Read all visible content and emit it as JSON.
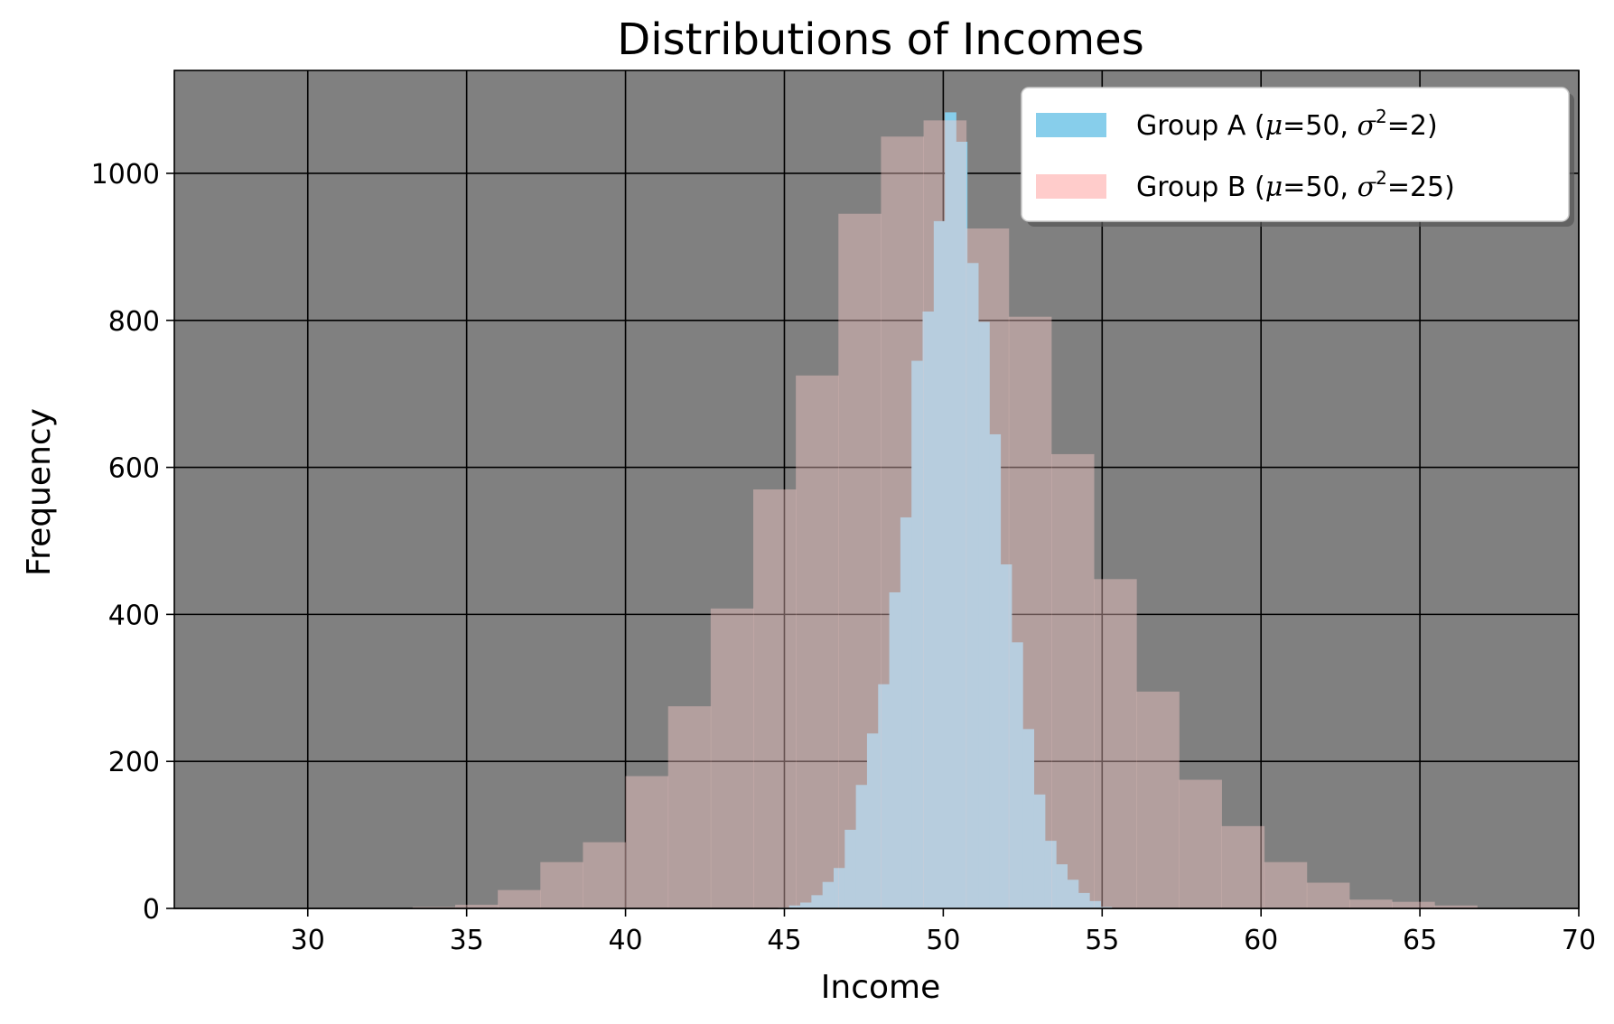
{
  "chart_data": {
    "type": "bar",
    "title": "Distributions of Incomes",
    "xlabel": "Income",
    "ylabel": "Frequency",
    "xlim": [
      25.8,
      70
    ],
    "ylim": [
      0,
      1140
    ],
    "xticks": [
      30,
      35,
      40,
      45,
      50,
      55,
      60,
      65,
      70
    ],
    "yticks": [
      0,
      200,
      400,
      600,
      800,
      1000
    ],
    "grid": true,
    "legend_position": "top-right",
    "background_color": "#808080",
    "series": [
      {
        "name": "Group A (μ=50, σ²=2)",
        "name_parts": {
          "prefix": "Group A (",
          "mu": "μ",
          "mu_val": "=50, ",
          "sigma": "σ",
          "sup": "2",
          "sigma_val": "=2)"
        },
        "color": "#87ceeb",
        "alpha": 1.0,
        "bin_start": 44.8,
        "bin_width": 0.35,
        "values": [
          1,
          4,
          8,
          18,
          36,
          55,
          107,
          168,
          238,
          305,
          430,
          532,
          745,
          812,
          935,
          1083,
          1043,
          878,
          798,
          645,
          468,
          362,
          244,
          155,
          92,
          60,
          39,
          21,
          10,
          2
        ]
      },
      {
        "name": "Group B (μ=50, σ²=25)",
        "name_parts": {
          "prefix": "Group B (",
          "mu": "μ",
          "mu_val": "=50, ",
          "sigma": "σ",
          "sup": "2",
          "sigma_val": "=25)"
        },
        "color": "#ffcccb",
        "alpha": 0.4,
        "bin_start": 33.3,
        "bin_width": 1.34,
        "values": [
          2,
          5,
          25,
          63,
          90,
          180,
          275,
          408,
          570,
          725,
          945,
          1050,
          1072,
          925,
          805,
          618,
          448,
          295,
          175,
          112,
          63,
          35,
          12,
          9,
          4,
          1
        ]
      }
    ]
  }
}
